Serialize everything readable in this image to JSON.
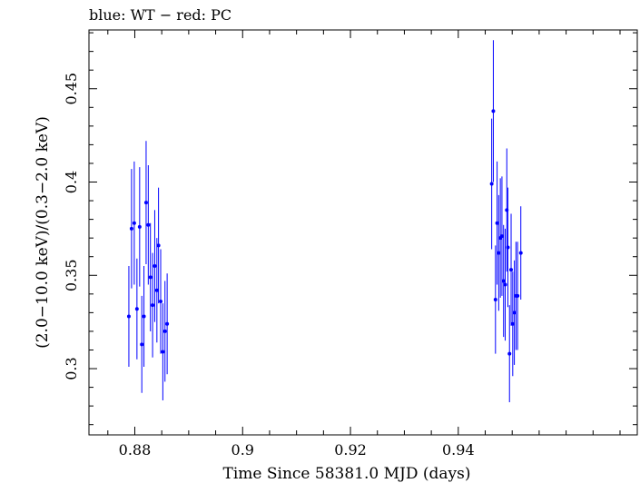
{
  "chart_data": {
    "type": "scatter",
    "title": "blue: WT − red: PC",
    "xlabel": "Time Since 58381.0 MJD (days)",
    "ylabel": "(2.0−10.0 keV)/(0.3−2.0 keV)",
    "xlim": [
      0.8715,
      0.9732
    ],
    "ylim": [
      0.2645,
      0.4815
    ],
    "x_ticks": [
      0.88,
      0.9,
      0.92,
      0.94
    ],
    "x_tick_labels": [
      "0.88",
      "0.9",
      "0.92",
      "0.94"
    ],
    "y_ticks": [
      0.3,
      0.35,
      0.4,
      0.45
    ],
    "y_tick_labels": [
      "0.3",
      "0.35",
      "0.4",
      "0.45"
    ],
    "grid": false,
    "series": [
      {
        "name": "WT",
        "color": "#0000ff",
        "points": [
          {
            "x": 0.8789,
            "y": 0.328,
            "err": 0.027
          },
          {
            "x": 0.8794,
            "y": 0.375,
            "err": 0.032
          },
          {
            "x": 0.8799,
            "y": 0.378,
            "err": 0.033
          },
          {
            "x": 0.8804,
            "y": 0.332,
            "err": 0.027
          },
          {
            "x": 0.8809,
            "y": 0.376,
            "err": 0.032
          },
          {
            "x": 0.8813,
            "y": 0.313,
            "err": 0.026
          },
          {
            "x": 0.8817,
            "y": 0.328,
            "err": 0.027
          },
          {
            "x": 0.8821,
            "y": 0.389,
            "err": 0.033
          },
          {
            "x": 0.8825,
            "y": 0.377,
            "err": 0.032
          },
          {
            "x": 0.8829,
            "y": 0.349,
            "err": 0.029
          },
          {
            "x": 0.8833,
            "y": 0.334,
            "err": 0.028
          },
          {
            "x": 0.8837,
            "y": 0.355,
            "err": 0.03
          },
          {
            "x": 0.8841,
            "y": 0.342,
            "err": 0.028
          },
          {
            "x": 0.8844,
            "y": 0.366,
            "err": 0.031
          },
          {
            "x": 0.8848,
            "y": 0.336,
            "err": 0.028
          },
          {
            "x": 0.8852,
            "y": 0.309,
            "err": 0.026
          },
          {
            "x": 0.8856,
            "y": 0.32,
            "err": 0.027
          },
          {
            "x": 0.886,
            "y": 0.324,
            "err": 0.027
          },
          {
            "x": 0.9462,
            "y": 0.399,
            "err": 0.035
          },
          {
            "x": 0.9465,
            "y": 0.438,
            "err": 0.038
          },
          {
            "x": 0.9469,
            "y": 0.337,
            "err": 0.029
          },
          {
            "x": 0.9472,
            "y": 0.378,
            "err": 0.033
          },
          {
            "x": 0.9475,
            "y": 0.362,
            "err": 0.031
          },
          {
            "x": 0.9478,
            "y": 0.37,
            "err": 0.032
          },
          {
            "x": 0.9481,
            "y": 0.371,
            "err": 0.032
          },
          {
            "x": 0.9484,
            "y": 0.347,
            "err": 0.03
          },
          {
            "x": 0.9487,
            "y": 0.345,
            "err": 0.03
          },
          {
            "x": 0.949,
            "y": 0.385,
            "err": 0.033
          },
          {
            "x": 0.9492,
            "y": 0.365,
            "err": 0.032
          },
          {
            "x": 0.9495,
            "y": 0.308,
            "err": 0.026
          },
          {
            "x": 0.9498,
            "y": 0.353,
            "err": 0.03
          },
          {
            "x": 0.9501,
            "y": 0.324,
            "err": 0.028
          },
          {
            "x": 0.9504,
            "y": 0.33,
            "err": 0.028
          },
          {
            "x": 0.9507,
            "y": 0.339,
            "err": 0.029
          },
          {
            "x": 0.951,
            "y": 0.339,
            "err": 0.029
          },
          {
            "x": 0.9516,
            "y": 0.362,
            "err": 0.025
          }
        ]
      },
      {
        "name": "PC",
        "color": "#ff0000",
        "points": []
      }
    ]
  }
}
